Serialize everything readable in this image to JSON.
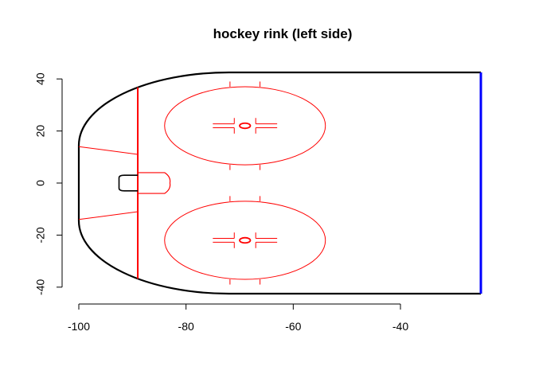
{
  "chart_data": {
    "type": "diagram",
    "title": "hockey rink (left side)",
    "xlabel": "",
    "ylabel": "",
    "xlim": [
      -100,
      -25
    ],
    "ylim": [
      -42.5,
      42.5
    ],
    "x_ticks": [
      -100,
      -80,
      -60,
      -40
    ],
    "y_ticks": [
      -40,
      -20,
      0,
      20,
      40
    ],
    "x_tick_labels": [
      "-100",
      "-80",
      "-60",
      "-40"
    ],
    "y_tick_labels": [
      "-40",
      "-20",
      "0",
      "20",
      "40"
    ],
    "grid": false,
    "colors": {
      "boards": "#000000",
      "markings": "#ff0000",
      "center_line": "#0000ff"
    },
    "rink": {
      "x_min": -100,
      "x_max": -25,
      "y_min": -42.5,
      "y_max": 42.5,
      "corner_radius": 28,
      "goal_line_x": -89,
      "center_line_x": -25
    },
    "faceoff_circles": [
      {
        "cx": -69,
        "cy": 22,
        "r": 15
      },
      {
        "cx": -69,
        "cy": -22,
        "r": 15
      }
    ],
    "goal_crease": {
      "x_from": -89,
      "x_to": -83,
      "half_width": 4
    },
    "goal_net": {
      "x_from": -92.5,
      "x_to": -89,
      "half_width": 3
    },
    "trapezoid": {
      "goal_line_half_width": 11,
      "end_board_half_width": 14
    }
  }
}
